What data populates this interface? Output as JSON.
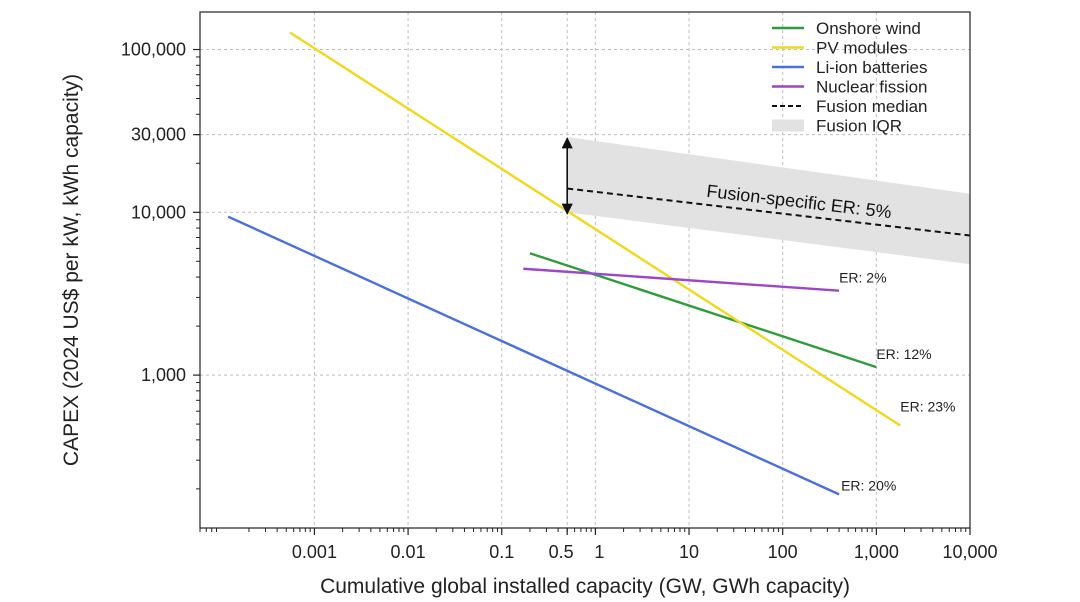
{
  "chart_data": {
    "type": "line",
    "xscale": "log",
    "yscale": "log",
    "xlabel": "Cumulative global installed capacity (GW, GWh capacity)",
    "ylabel": "CAPEX (2024 US$ per kW, kWh capacity)",
    "xlim": [
      6e-05,
      10000
    ],
    "ylim": [
      115,
      170000
    ],
    "grid": true,
    "legend_position": "top-right",
    "x_ticks": [
      {
        "value": 0.001,
        "label": "0.001"
      },
      {
        "value": 0.01,
        "label": "0.01"
      },
      {
        "value": 0.1,
        "label": "0.1"
      },
      {
        "value": 0.5,
        "label": "0.5"
      },
      {
        "value": 1,
        "label": "1"
      },
      {
        "value": 10,
        "label": "10"
      },
      {
        "value": 100,
        "label": "100"
      },
      {
        "value": 1000,
        "label": "1,000"
      },
      {
        "value": 10000,
        "label": "10,000"
      }
    ],
    "y_ticks": [
      {
        "value": 1000,
        "label": "1,000"
      },
      {
        "value": 10000,
        "label": "10,000"
      },
      {
        "value": 30000,
        "label": "30,000"
      },
      {
        "value": 100000,
        "label": "100,000"
      }
    ],
    "series": [
      {
        "name": "Onshore wind",
        "color": "#2e9c3a",
        "dash": "solid",
        "x": [
          0.2,
          1000
        ],
        "y": [
          5600,
          1120
        ],
        "er_label": "ER: 12%"
      },
      {
        "name": "PV modules",
        "color": "#f2d81c",
        "dash": "solid",
        "x": [
          0.00055,
          1800
        ],
        "y": [
          127000,
          490
        ],
        "er_label": "ER: 23%"
      },
      {
        "name": "Li-ion batteries",
        "color": "#4a6fe0",
        "dash": "solid",
        "x": [
          0.00012,
          400
        ],
        "y": [
          9400,
          185
        ],
        "er_label": "ER: 20%"
      },
      {
        "name": "Nuclear fission",
        "color": "#9c47c8",
        "dash": "solid",
        "x": [
          0.17,
          400
        ],
        "y": [
          4500,
          3300
        ],
        "er_label": "ER: 2%"
      },
      {
        "name": "Fusion median",
        "color": "#111111",
        "dash": "dashed",
        "x": [
          0.5,
          10000
        ],
        "y": [
          14000,
          7200
        ],
        "er_label": "Fusion-specific ER: 5%"
      }
    ],
    "fusion_iqr": {
      "name": "Fusion IQR",
      "color": "#e2e2e2",
      "x": [
        0.5,
        10000
      ],
      "y_low": [
        10000,
        4800
      ],
      "y_high": [
        29000,
        13000
      ]
    },
    "range_arrow": {
      "x": 0.5,
      "y_low": 9800,
      "y_high": 28500
    }
  }
}
